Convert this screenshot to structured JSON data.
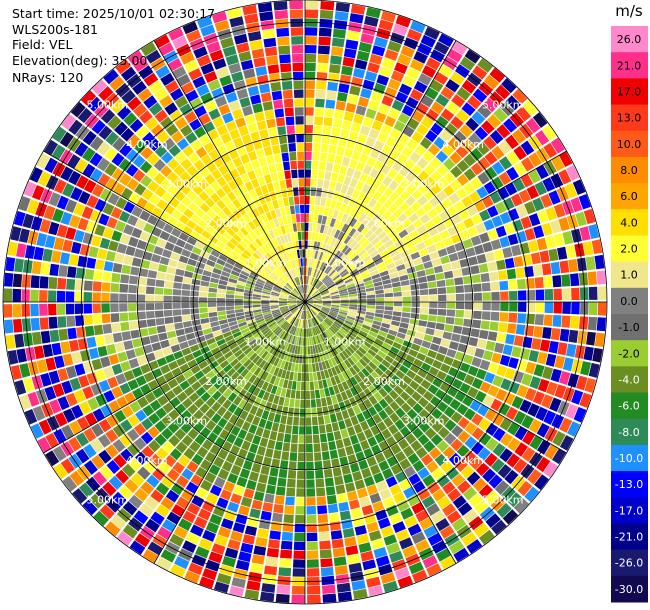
{
  "info": {
    "start_time": "Start time: 2025/10/01 02:30:17",
    "instrument": "WLS200s-181",
    "field": "Field: VEL",
    "elevation": "Elevation(deg): 35.00",
    "nrays": "NRays: 120"
  },
  "chart_data": {
    "type": "ppi",
    "units": "m/s",
    "n_rays": 120,
    "elevation_deg": 35.0,
    "max_range_km": 5.4,
    "range_rings_km": [
      1.0,
      2.0,
      3.0,
      4.0,
      5.0
    ],
    "azimuth_spokes_deg": [
      0,
      30,
      60,
      90,
      120,
      150,
      180,
      210,
      240,
      270,
      300,
      330
    ],
    "ring_labels": [
      "1.00km",
      "2.00km",
      "3.00km",
      "4.00km",
      "5.00km"
    ],
    "colorbar": {
      "unit_label": "m/s",
      "ticks": [
        "26.0",
        "21.0",
        "17.0",
        "13.0",
        "10.0",
        "8.0",
        "6.0",
        "4.0",
        "2.0",
        "1.0",
        "0.0",
        "-1.0",
        "-2.0",
        "-4.0",
        "-6.0",
        "-8.0",
        "-10.0",
        "-13.0",
        "-17.0",
        "-21.0",
        "-26.0",
        "-30.0"
      ],
      "colors": [
        "#ff88cc",
        "#ff2f8a",
        "#f00000",
        "#ff3a1a",
        "#ff5a1a",
        "#ff8c00",
        "#ffa500",
        "#ffdf00",
        "#ffff33",
        "#f0e68c",
        "#808080",
        "#707070",
        "#9acd32",
        "#6b8e23",
        "#228b22",
        "#2e8b57",
        "#1e90ff",
        "#0000ff",
        "#0000cd",
        "#00008b",
        "#191970",
        "#120a50"
      ]
    },
    "sectors": [
      {
        "az_from": 300,
        "az_to": 360,
        "value": 5.0,
        "desc": "NW strong positive"
      },
      {
        "az_from": 0,
        "az_to": 70,
        "value": 3.0,
        "desc": "NE positive"
      },
      {
        "az_from": 70,
        "az_to": 110,
        "value": 0.0,
        "desc": "E near zero"
      },
      {
        "az_from": 110,
        "az_to": 250,
        "value": -4.0,
        "desc": "S negative"
      },
      {
        "az_from": 250,
        "az_to": 300,
        "value": 0.0,
        "desc": "W near zero"
      }
    ],
    "title": "",
    "xlabel": "",
    "ylabel": ""
  }
}
